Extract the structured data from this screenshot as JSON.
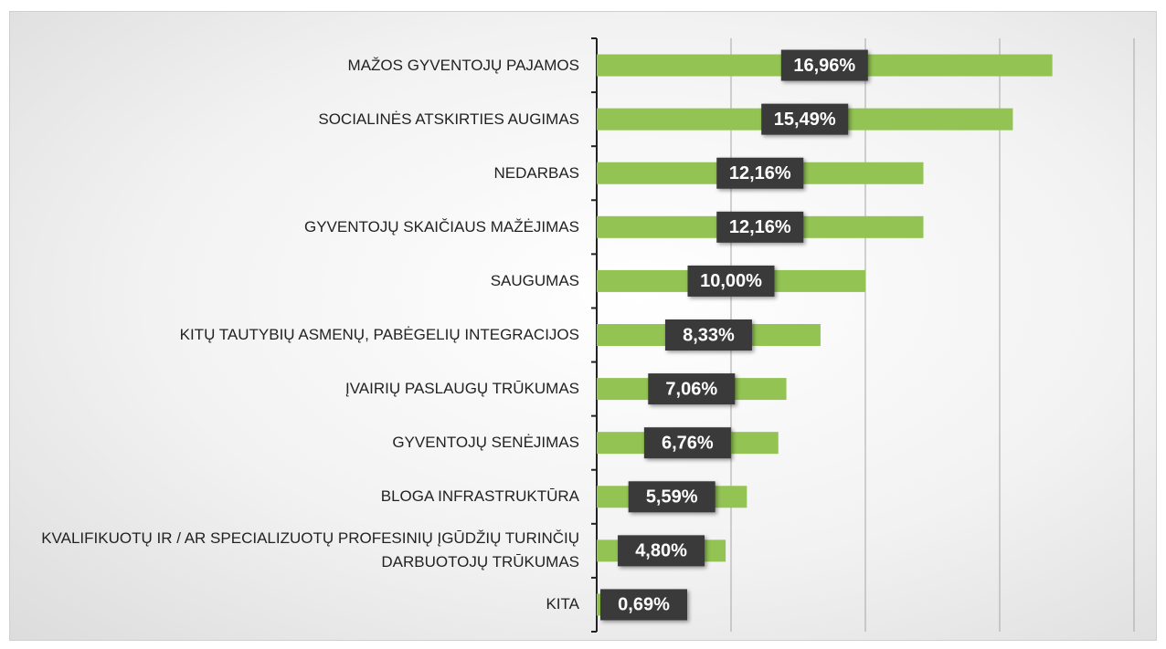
{
  "chart_data": {
    "type": "bar",
    "orientation": "horizontal",
    "categories": [
      "MAŽOS GYVENTOJŲ PAJAMOS",
      "SOCIALINĖS ATSKIRTIES AUGIMAS",
      "NEDARBAS",
      "GYVENTOJŲ SKAIČIAUS MAŽĖJIMAS",
      "SAUGUMAS",
      "KITŲ TAUTYBIŲ ASMENŲ, PABĖGELIŲ INTEGRACIJOS",
      "ĮVAIRIŲ PASLAUGŲ TRŪKUMAS",
      "GYVENTOJŲ SENĖJIMAS",
      "BLOGA INFRASTRUKTŪRA",
      "KVALIFIKUOTŲ IR / AR SPECIALIZUOTŲ PROFESINIŲ ĮGŪDŽIŲ TURINČIŲ DARBUOTOJŲ TRŪKUMAS",
      "KITA"
    ],
    "values": [
      16.96,
      15.49,
      12.16,
      12.16,
      10.0,
      8.33,
      7.06,
      6.76,
      5.59,
      4.8,
      0.69
    ],
    "value_labels": [
      "16,96%",
      "15,49%",
      "12,16%",
      "12,16%",
      "10,00%",
      "8,33%",
      "7,06%",
      "6,76%",
      "5,59%",
      "4,80%",
      "0,69%"
    ],
    "color": "#92c353",
    "xlim": [
      0,
      20
    ],
    "xticks": [
      0,
      5,
      10,
      15,
      20
    ],
    "grid": true
  }
}
